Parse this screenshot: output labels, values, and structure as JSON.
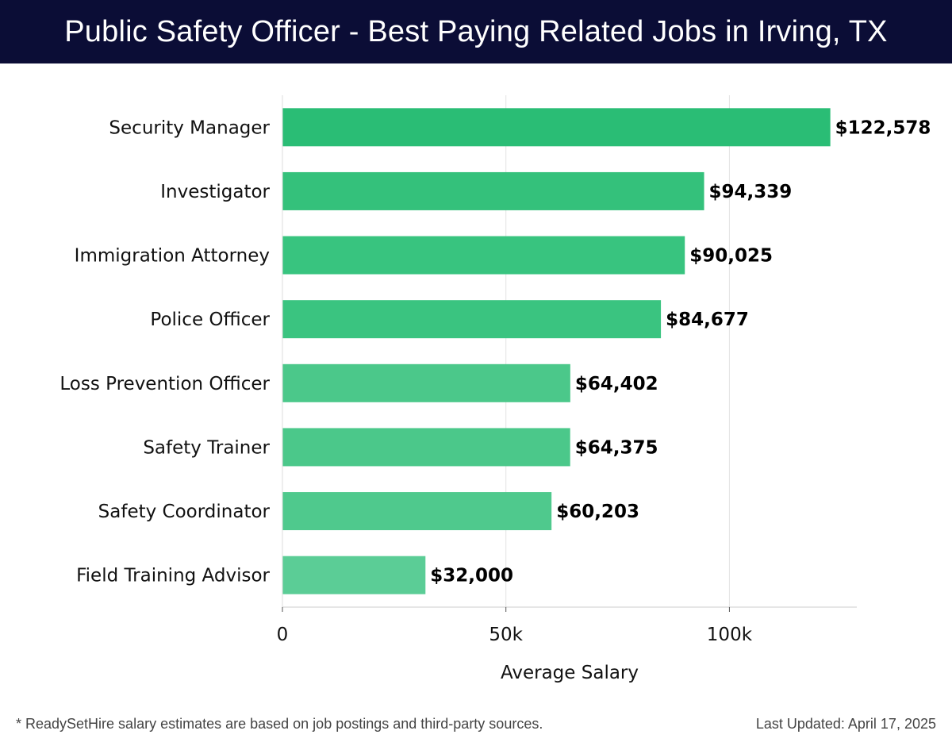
{
  "header": {
    "title": "Public Safety Officer - Best Paying Related Jobs in Irving, TX"
  },
  "chart_data": {
    "type": "bar",
    "orientation": "horizontal",
    "categories": [
      "Security Manager",
      "Investigator",
      "Immigration Attorney",
      "Police Officer",
      "Loss Prevention Officer",
      "Safety Trainer",
      "Safety Coordinator",
      "Field Training Advisor"
    ],
    "values": [
      122578,
      94339,
      90025,
      84677,
      64402,
      64375,
      60203,
      32000
    ],
    "value_labels": [
      "$122,578",
      "$94,339",
      "$90,025",
      "$84,677",
      "$64,402",
      "$64,375",
      "$60,203",
      "$32,000"
    ],
    "xlabel": "Average Salary",
    "ylabel": "",
    "xlim": [
      0,
      128500
    ],
    "x_ticks": [
      0,
      50000,
      100000
    ],
    "x_tick_labels": [
      "0",
      "50k",
      "100k"
    ],
    "grid": "vertical",
    "bar_colors": [
      "#2abd75",
      "#34c17b",
      "#38c47f",
      "#3ac480",
      "#4bc88a",
      "#4bc88a",
      "#4fc98d",
      "#5bcd96"
    ]
  },
  "footer": {
    "note": "* ReadySetHire salary estimates are based on job postings and third-party sources.",
    "updated": "Last Updated: April 17, 2025"
  }
}
